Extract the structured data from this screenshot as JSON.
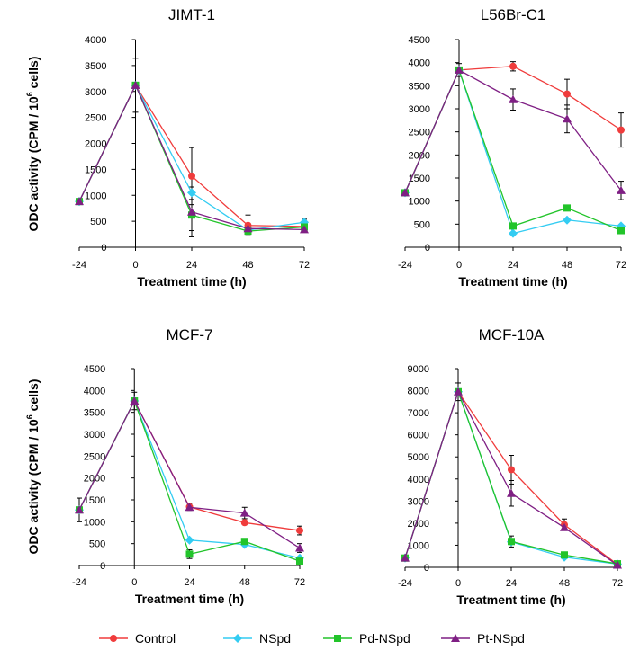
{
  "legend": [
    {
      "name": "Control",
      "color": "#f03c3c",
      "marker": "circle"
    },
    {
      "name": "NSpd",
      "color": "#33ccf2",
      "marker": "diamond"
    },
    {
      "name": "Pd-NSpd",
      "color": "#22c42a",
      "marker": "square"
    },
    {
      "name": "Pt-NSpd",
      "color": "#7f1f84",
      "marker": "triangle"
    }
  ],
  "chart_data": [
    {
      "type": "line",
      "title": "JIMT-1",
      "xlabel": "Treatment time (h)",
      "ylabel_main": "ODC activity (CPM / 10",
      "ylabel_sup": "6",
      "ylabel_end": " cells)",
      "x": [
        -24,
        0,
        24,
        48,
        72
      ],
      "xticks": [
        "-24",
        "0",
        "24",
        "48",
        "72"
      ],
      "ylim": [
        0,
        4000
      ],
      "yticks": [
        "0",
        "500",
        "1000",
        "1500",
        "2000",
        "2500",
        "3000",
        "3500",
        "4000"
      ],
      "series": [
        {
          "name": "Control",
          "values": [
            880,
            3120,
            1370,
            420,
            400
          ],
          "errors": [
            0,
            520,
            550,
            200,
            0
          ]
        },
        {
          "name": "NSpd",
          "values": [
            880,
            3120,
            1050,
            330,
            480
          ],
          "errors": [
            0,
            0,
            0,
            0,
            60
          ]
        },
        {
          "name": "Pd-NSpd",
          "values": [
            880,
            3120,
            620,
            310,
            390
          ],
          "errors": [
            0,
            0,
            300,
            0,
            0
          ]
        },
        {
          "name": "Pt-NSpd",
          "values": [
            880,
            3120,
            680,
            360,
            340
          ],
          "errors": [
            0,
            0,
            480,
            0,
            0
          ]
        }
      ]
    },
    {
      "type": "line",
      "title": "L56Br-C1",
      "xlabel": "Treatment time (h)",
      "ylabel_main": "",
      "ylabel_sup": "",
      "ylabel_end": "",
      "x": [
        -24,
        0,
        24,
        48,
        72
      ],
      "xticks": [
        "-24",
        "0",
        "24",
        "48",
        "72"
      ],
      "ylim": [
        0,
        4500
      ],
      "yticks": [
        "0",
        "500",
        "1000",
        "1500",
        "2000",
        "2500",
        "3000",
        "3500",
        "4000",
        "4500"
      ],
      "series": [
        {
          "name": "Control",
          "values": [
            1180,
            3840,
            3920,
            3320,
            2540
          ],
          "errors": [
            0,
            140,
            100,
            320,
            370
          ]
        },
        {
          "name": "NSpd",
          "values": [
            1180,
            3840,
            300,
            590,
            460
          ],
          "errors": [
            0,
            0,
            0,
            0,
            0
          ]
        },
        {
          "name": "Pd-NSpd",
          "values": [
            1180,
            3840,
            460,
            850,
            360
          ],
          "errors": [
            0,
            0,
            0,
            0,
            0
          ]
        },
        {
          "name": "Pt-NSpd",
          "values": [
            1180,
            3840,
            3200,
            2780,
            1230
          ],
          "errors": [
            0,
            0,
            230,
            300,
            200
          ]
        }
      ]
    },
    {
      "type": "line",
      "title": "MCF-7",
      "xlabel": "Treatment time (h)",
      "ylabel_main": "ODC activity (CPM / 10",
      "ylabel_sup": "6",
      "ylabel_end": " cells)",
      "x": [
        -24,
        0,
        24,
        48,
        72
      ],
      "xticks": [
        "-24",
        "0",
        "24",
        "48",
        "72"
      ],
      "ylim": [
        0,
        4500
      ],
      "yticks": [
        "0",
        "500",
        "1000",
        "1500",
        "2000",
        "2500",
        "3000",
        "3500",
        "4000",
        "4500"
      ],
      "series": [
        {
          "name": "Control",
          "values": [
            1270,
            3760,
            1340,
            980,
            800
          ],
          "errors": [
            270,
            200,
            80,
            0,
            100
          ]
        },
        {
          "name": "NSpd",
          "values": [
            1270,
            3760,
            580,
            480,
            170
          ],
          "errors": [
            0,
            0,
            0,
            0,
            0
          ]
        },
        {
          "name": "Pd-NSpd",
          "values": [
            1270,
            3760,
            260,
            550,
            100
          ],
          "errors": [
            0,
            0,
            100,
            0,
            0
          ]
        },
        {
          "name": "Pt-NSpd",
          "values": [
            1270,
            3760,
            1330,
            1200,
            400
          ],
          "errors": [
            0,
            0,
            0,
            130,
            100
          ]
        }
      ]
    },
    {
      "type": "line",
      "title": "MCF-10A",
      "xlabel": "Treatment time (h)",
      "ylabel_main": "",
      "ylabel_sup": "",
      "ylabel_end": "",
      "x": [
        -24,
        0,
        24,
        48,
        72
      ],
      "xticks": [
        "-24",
        "0",
        "24",
        "48",
        "72"
      ],
      "ylim": [
        0,
        9000
      ],
      "yticks": [
        "0",
        "1000",
        "2000",
        "3000",
        "4000",
        "5000",
        "6000",
        "7000",
        "8000",
        "9000"
      ],
      "series": [
        {
          "name": "Control",
          "values": [
            420,
            7950,
            4420,
            1930,
            130
          ],
          "errors": [
            0,
            400,
            650,
            260,
            0
          ]
        },
        {
          "name": "NSpd",
          "values": [
            420,
            7950,
            1150,
            460,
            150
          ],
          "errors": [
            0,
            0,
            0,
            0,
            0
          ]
        },
        {
          "name": "Pd-NSpd",
          "values": [
            420,
            7950,
            1170,
            560,
            160
          ],
          "errors": [
            0,
            0,
            250,
            0,
            0
          ]
        },
        {
          "name": "Pt-NSpd",
          "values": [
            420,
            7950,
            3350,
            1800,
            100
          ],
          "errors": [
            0,
            0,
            580,
            0,
            0
          ]
        }
      ]
    }
  ]
}
